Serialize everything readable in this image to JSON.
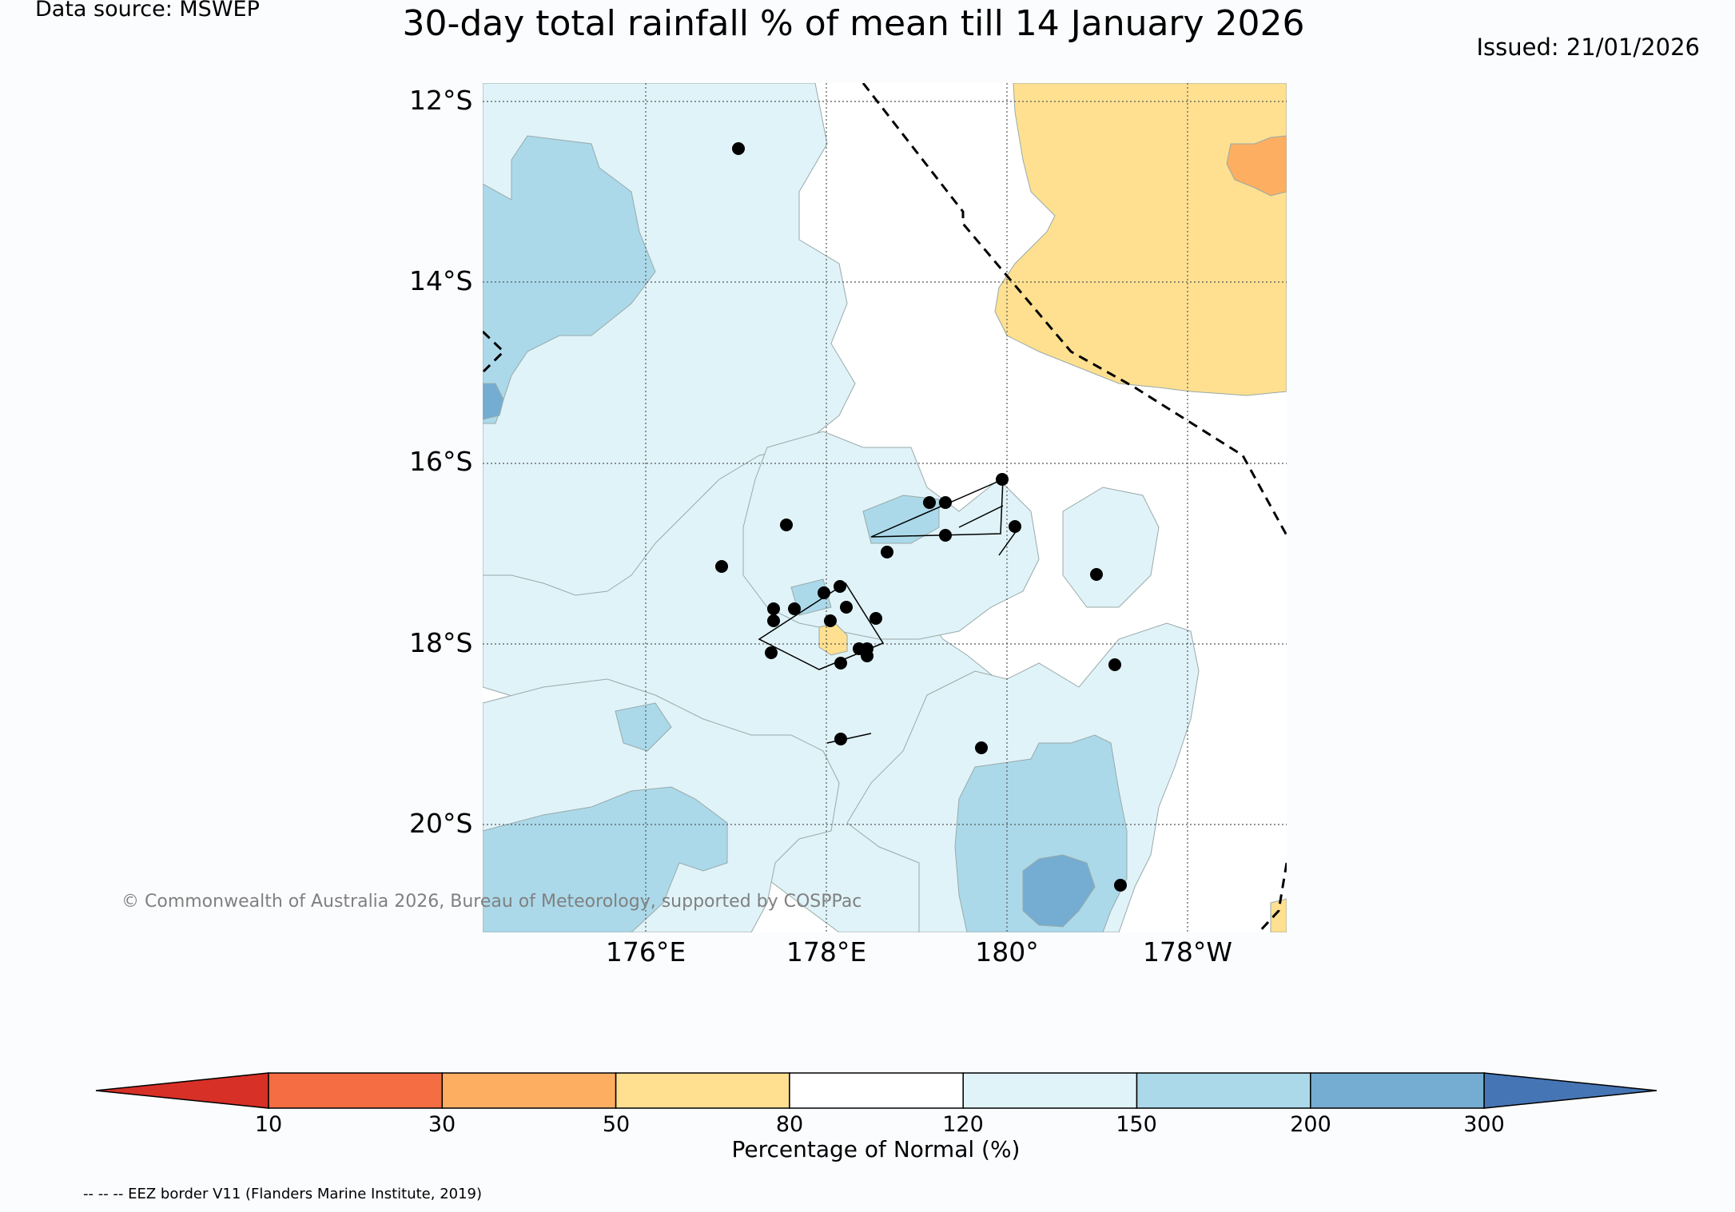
{
  "header": {
    "data_source": "Data source: MSWEP",
    "title": "30-day total rainfall % of mean till 14 January 2026",
    "issued": "Issued: 21/01/2026"
  },
  "map": {
    "latitude_labels": [
      "12°S",
      "14°S",
      "16°S",
      "18°S",
      "20°S"
    ],
    "longitude_labels": [
      "176°E",
      "178°E",
      "180°",
      "178°W"
    ],
    "extent": {
      "lon_min": 174.2,
      "lon_max": 183.1,
      "lat_min": -21.2,
      "lat_max": -11.8
    },
    "copyright": "© Commonwealth of Australia 2026, Bureau of Meteorology, supported by COSPPac"
  },
  "colorbar": {
    "label": "Percentage of Normal (%)",
    "ticks": [
      "10",
      "30",
      "50",
      "80",
      "120",
      "150",
      "200",
      "300"
    ],
    "colors": {
      "below_10": "#d73027",
      "10_30": "#f46d43",
      "30_50": "#fdae61",
      "50_80": "#fee090",
      "80_120": "#ffffff",
      "120_150": "#e0f3f8",
      "150_200": "#abd9e9",
      "200_300": "#74add1",
      "above_300": "#4575b4"
    }
  },
  "footer": {
    "eez_note": "-- -- -- EEZ border V11 (Flanders Marine Institute, 2019)"
  }
}
